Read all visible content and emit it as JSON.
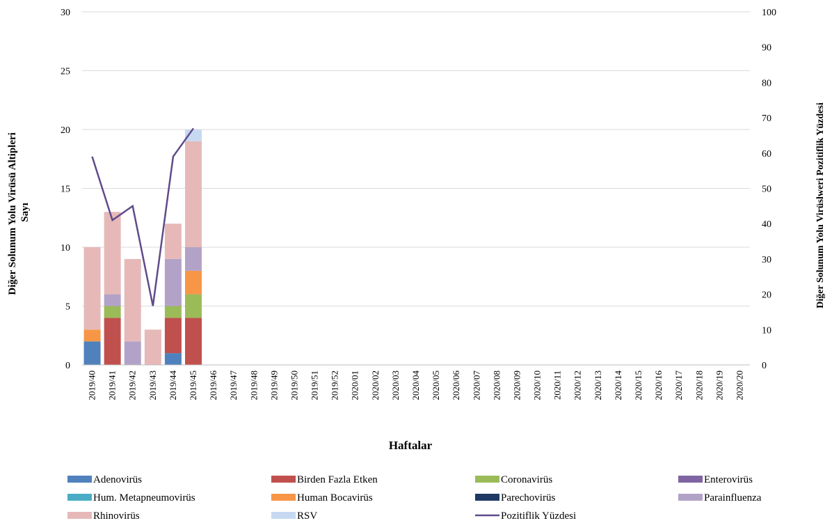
{
  "chart_data": {
    "type": "bar",
    "stacked": true,
    "xlabel": "Haftalar",
    "ylabel": "Diğer Solunum Yolu Virüsü Altipleri Sayı",
    "ylabel_lines": [
      "Diğer Solunum Yolu Virüsü Altipleri",
      "Sayı"
    ],
    "y2label": "Diğer Solunum Yolu Virüslweri Pozitiflik Yüzdesi",
    "ylim": [
      0,
      30
    ],
    "yticks": [
      0,
      5,
      10,
      15,
      20,
      25,
      30
    ],
    "y2lim": [
      0,
      100
    ],
    "y2ticks": [
      0,
      10,
      20,
      30,
      40,
      50,
      60,
      70,
      80,
      90,
      100
    ],
    "grid": true,
    "legend_position": "bottom",
    "categories": [
      "2019/40",
      "2019/41",
      "2019/42",
      "2019/43",
      "2019/44",
      "2019/45",
      "2019/46",
      "2019/47",
      "2019/48",
      "2019/49",
      "2019/50",
      "2019/51",
      "2019/52",
      "2020/01",
      "2020/02",
      "2020/03",
      "2020/04",
      "2020/05",
      "2020/06",
      "2020/07",
      "2020/08",
      "2020/09",
      "2020/10",
      "2020/11",
      "2020/12",
      "2020/13",
      "2020/14",
      "2020/15",
      "2020/16",
      "2020/17",
      "2020/18",
      "2020/19",
      "2020/20"
    ],
    "series": [
      {
        "name": "Adenovirüs",
        "type": "bar",
        "color": "#4f81bd",
        "values": [
          2,
          0,
          0,
          0,
          1,
          0,
          0,
          0,
          0,
          0,
          0,
          0,
          0,
          0,
          0,
          0,
          0,
          0,
          0,
          0,
          0,
          0,
          0,
          0,
          0,
          0,
          0,
          0,
          0,
          0,
          0,
          0,
          0
        ]
      },
      {
        "name": "Birden Fazla Etken",
        "type": "bar",
        "color": "#c0504d",
        "values": [
          0,
          4,
          0,
          0,
          3,
          4,
          0,
          0,
          0,
          0,
          0,
          0,
          0,
          0,
          0,
          0,
          0,
          0,
          0,
          0,
          0,
          0,
          0,
          0,
          0,
          0,
          0,
          0,
          0,
          0,
          0,
          0,
          0
        ]
      },
      {
        "name": "Coronavirüs",
        "type": "bar",
        "color": "#9bbb59",
        "values": [
          0,
          1,
          0,
          0,
          1,
          2,
          0,
          0,
          0,
          0,
          0,
          0,
          0,
          0,
          0,
          0,
          0,
          0,
          0,
          0,
          0,
          0,
          0,
          0,
          0,
          0,
          0,
          0,
          0,
          0,
          0,
          0,
          0
        ]
      },
      {
        "name": "Enterovirüs",
        "type": "bar",
        "color": "#8064a2",
        "values": [
          0,
          0,
          0,
          0,
          0,
          0,
          0,
          0,
          0,
          0,
          0,
          0,
          0,
          0,
          0,
          0,
          0,
          0,
          0,
          0,
          0,
          0,
          0,
          0,
          0,
          0,
          0,
          0,
          0,
          0,
          0,
          0,
          0
        ]
      },
      {
        "name": "Hum. Metapneumovirüs",
        "type": "bar",
        "color": "#4bacc6",
        "values": [
          0,
          0,
          0,
          0,
          0,
          0,
          0,
          0,
          0,
          0,
          0,
          0,
          0,
          0,
          0,
          0,
          0,
          0,
          0,
          0,
          0,
          0,
          0,
          0,
          0,
          0,
          0,
          0,
          0,
          0,
          0,
          0,
          0
        ]
      },
      {
        "name": "Human Bocavirüs",
        "type": "bar",
        "color": "#f79646",
        "values": [
          1,
          0,
          0,
          0,
          0,
          2,
          0,
          0,
          0,
          0,
          0,
          0,
          0,
          0,
          0,
          0,
          0,
          0,
          0,
          0,
          0,
          0,
          0,
          0,
          0,
          0,
          0,
          0,
          0,
          0,
          0,
          0,
          0
        ]
      },
      {
        "name": "Parechovirüs",
        "type": "bar",
        "color": "#1f3864",
        "values": [
          0,
          0,
          0,
          0,
          0,
          0,
          0,
          0,
          0,
          0,
          0,
          0,
          0,
          0,
          0,
          0,
          0,
          0,
          0,
          0,
          0,
          0,
          0,
          0,
          0,
          0,
          0,
          0,
          0,
          0,
          0,
          0,
          0
        ]
      },
      {
        "name": "Parainfluenza",
        "type": "bar",
        "color": "#b3a2c7",
        "values": [
          0,
          1,
          2,
          0,
          4,
          2,
          0,
          0,
          0,
          0,
          0,
          0,
          0,
          0,
          0,
          0,
          0,
          0,
          0,
          0,
          0,
          0,
          0,
          0,
          0,
          0,
          0,
          0,
          0,
          0,
          0,
          0,
          0
        ]
      },
      {
        "name": "Rhinovirüs",
        "type": "bar",
        "color": "#e6b9b8",
        "values": [
          7,
          7,
          7,
          3,
          3,
          9,
          0,
          0,
          0,
          0,
          0,
          0,
          0,
          0,
          0,
          0,
          0,
          0,
          0,
          0,
          0,
          0,
          0,
          0,
          0,
          0,
          0,
          0,
          0,
          0,
          0,
          0,
          0
        ]
      },
      {
        "name": "RSV",
        "type": "bar",
        "color": "#c6d9f1",
        "values": [
          0,
          0,
          0,
          0,
          0,
          1,
          0,
          0,
          0,
          0,
          0,
          0,
          0,
          0,
          0,
          0,
          0,
          0,
          0,
          0,
          0,
          0,
          0,
          0,
          0,
          0,
          0,
          0,
          0,
          0,
          0,
          0,
          0
        ]
      },
      {
        "name": "Pozitiflik Yüzdesi",
        "type": "line",
        "axis": "y2",
        "color": "#5f4b8b",
        "values": [
          59,
          41,
          45,
          16.7,
          59,
          67,
          null,
          null,
          null,
          null,
          null,
          null,
          null,
          null,
          null,
          null,
          null,
          null,
          null,
          null,
          null,
          null,
          null,
          null,
          null,
          null,
          null,
          null,
          null,
          null,
          null,
          null,
          null
        ]
      }
    ]
  }
}
